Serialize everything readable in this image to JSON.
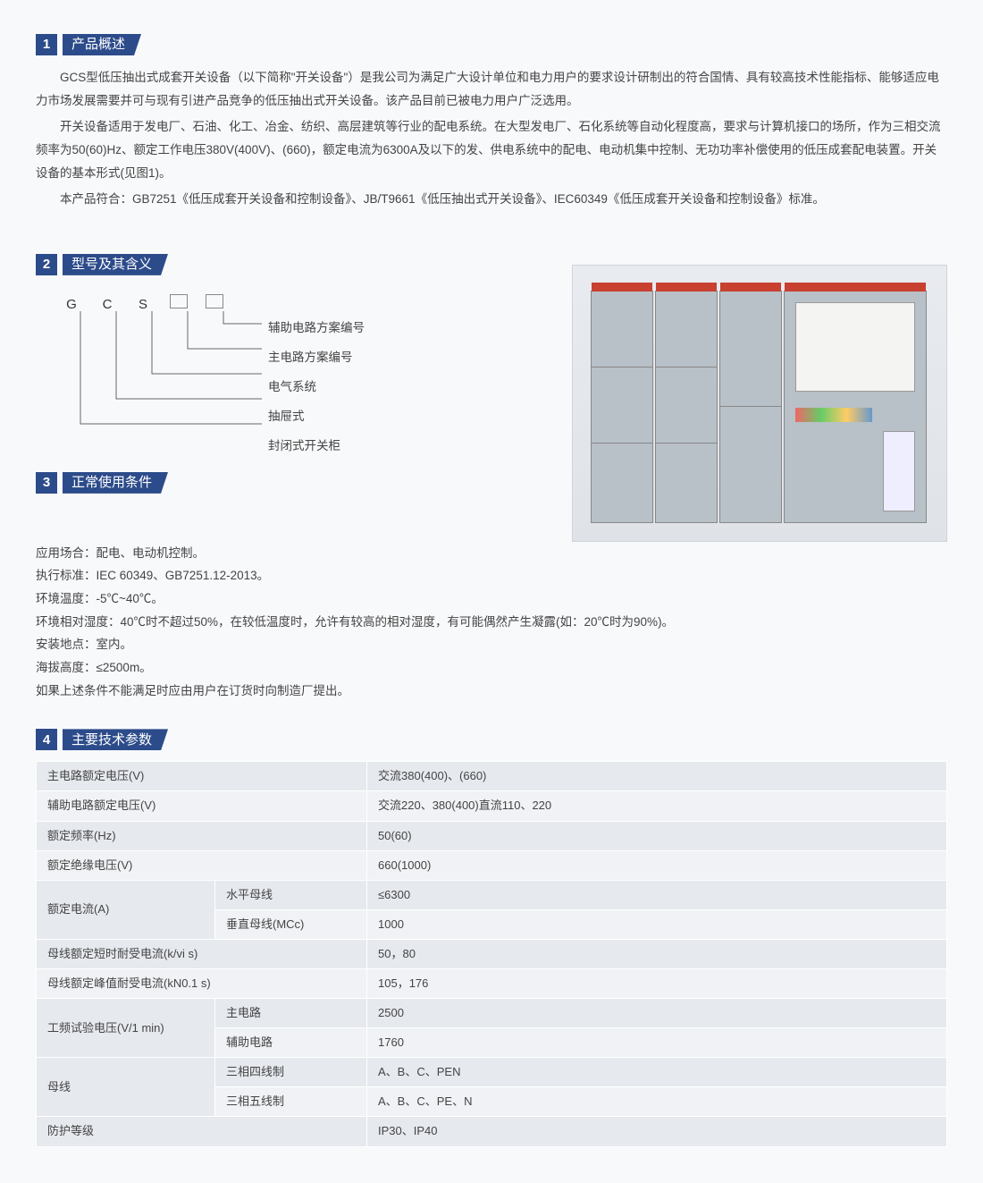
{
  "sections": {
    "s1": {
      "num": "1",
      "title": "产品概述"
    },
    "s2": {
      "num": "2",
      "title": "型号及其含义"
    },
    "s3": {
      "num": "3",
      "title": "正常使用条件"
    },
    "s4": {
      "num": "4",
      "title": "主要技术参数"
    }
  },
  "overview": {
    "p1": "GCS型低压抽出式成套开关设备（以下简称\"开关设备\"）是我公司为满足广大设计单位和电力用户的要求设计研制出的符合国情、具有较高技术性能指标、能够适应电力市场发展需要并可与现有引进产品竞争的低压抽出式开关设备。该产品目前已被电力用户广泛选用。",
    "p2": "开关设备适用于发电厂、石油、化工、冶金、纺织、高层建筑等行业的配电系统。在大型发电厂、石化系统等自动化程度高，要求与计算机接口的场所，作为三相交流频率为50(60)Hz、额定工作电压380V(400V)、(660)，额定电流为6300A及以下的发、供电系统中的配电、电动机集中控制、无功功率补偿使用的低压成套配电装置。开关设备的基本形式(见图1)。",
    "p3": "本产品符合：GB7251《低压成套开关设备和控制设备》、JB/T9661《低压抽出式开关设备》、IEC60349《低压成套开关设备和控制设备》标准。"
  },
  "model": {
    "letters": [
      "G",
      "C",
      "S"
    ],
    "labels": [
      "辅助电路方案编号",
      "主电路方案编号",
      "电气系统",
      "抽屉式",
      "封闭式开关柜"
    ]
  },
  "conditions": {
    "l1": "应用场合：配电、电动机控制。",
    "l2": "执行标准：IEC 60349、GB7251.12-2013。",
    "l3": "环境温度：-5℃~40℃。",
    "l4": "环境相对湿度：40℃时不超过50%，在较低温度时，允许有较高的相对湿度，有可能偶然产生凝露(如：20℃时为90%)。",
    "l5": "安装地点：室内。",
    "l6": "海拔高度：≤2500m。",
    "l7": "如果上述条件不能满足时应由用户在订货时向制造厂提出。"
  },
  "params": {
    "rows": [
      {
        "label": "主电路额定电压(V)",
        "sub": "",
        "value": "交流380(400)、(660)",
        "colspan": 2
      },
      {
        "label": "辅助电路额定电压(V)",
        "sub": "",
        "value": "交流220、380(400)直流110、220",
        "colspan": 2
      },
      {
        "label": "额定频率(Hz)",
        "sub": "",
        "value": "50(60)",
        "colspan": 2
      },
      {
        "label": "额定绝缘电压(V)",
        "sub": "",
        "value": "660(1000)",
        "colspan": 2
      },
      {
        "label": "额定电流(A)",
        "sub": "水平母线",
        "value": "≤6300",
        "rowspan": 2
      },
      {
        "label": "",
        "sub": "垂直母线(MCc)",
        "value": "1000"
      },
      {
        "label": "母线额定短时耐受电流(k/vi s)",
        "sub": "",
        "value": "50，80",
        "colspan": 2
      },
      {
        "label": "母线额定峰值耐受电流(kN0.1 s)",
        "sub": "",
        "value": "105，176",
        "colspan": 2
      },
      {
        "label": "工频试验电压(V/1 min)",
        "sub": "主电路",
        "value": "2500",
        "rowspan": 2
      },
      {
        "label": "",
        "sub": "辅助电路",
        "value": "1760"
      },
      {
        "label": "母线",
        "sub": "三相四线制",
        "value": "A、B、C、PEN",
        "rowspan": 2
      },
      {
        "label": "",
        "sub": "三相五线制",
        "value": "A、B、C、PE、N"
      },
      {
        "label": "防护等级",
        "sub": "",
        "value": "IP30、IP40",
        "colspan": 2
      }
    ]
  },
  "colors": {
    "primary": "#2c4b8a",
    "row_odd": "#e6e9ee",
    "row_even": "#f0f2f5"
  }
}
